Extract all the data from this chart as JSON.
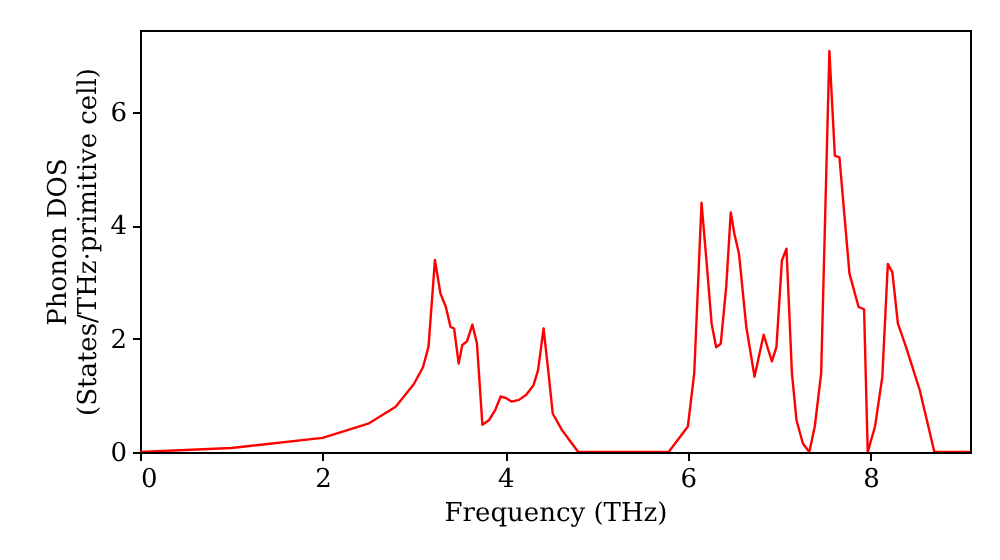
{
  "chart_data": {
    "type": "line",
    "xlabel": "Frequency (THz)",
    "ylabel": "Phonon DOS\n(States/THz·primitive cell)",
    "xlim": [
      0,
      9.09
    ],
    "ylim": [
      0,
      7.45
    ],
    "xticks": [
      0,
      2,
      4,
      6,
      8
    ],
    "yticks": [
      0,
      2,
      4,
      6
    ],
    "grid": false,
    "marker": "none",
    "line_style": "solid",
    "series": [
      {
        "color": "#ff0000",
        "x": [
          0,
          1,
          2,
          2.5,
          2.8,
          3.0,
          3.1,
          3.16,
          3.23,
          3.29,
          3.35,
          3.4,
          3.44,
          3.49,
          3.53,
          3.58,
          3.64,
          3.69,
          3.75,
          3.82,
          3.89,
          3.95,
          4.01,
          4.07,
          4.15,
          4.23,
          4.31,
          4.36,
          4.42,
          4.47,
          4.52,
          4.62,
          4.73,
          4.8,
          5.79,
          6.0,
          6.07,
          6.15,
          6.21,
          6.26,
          6.31,
          6.36,
          6.42,
          6.47,
          6.51,
          6.56,
          6.64,
          6.73,
          6.83,
          6.92,
          6.97,
          7.03,
          7.08,
          7.14,
          7.19,
          7.26,
          7.33,
          7.39,
          7.46,
          7.55,
          7.61,
          7.66,
          7.72,
          7.77,
          7.87,
          7.93,
          7.97,
          8.05,
          8.13,
          8.19,
          8.24,
          8.3,
          8.39,
          8.54,
          8.7,
          9.09
        ],
        "values": [
          0,
          0.07,
          0.25,
          0.5,
          0.8,
          1.2,
          1.5,
          1.86,
          3.39,
          2.8,
          2.56,
          2.21,
          2.18,
          1.56,
          1.89,
          1.95,
          2.25,
          1.92,
          0.48,
          0.56,
          0.74,
          0.98,
          0.95,
          0.89,
          0.92,
          1.01,
          1.18,
          1.45,
          2.18,
          1.45,
          0.68,
          0.39,
          0.15,
          0,
          0,
          0.45,
          1.39,
          4.4,
          3.26,
          2.27,
          1.85,
          1.91,
          2.91,
          4.23,
          3.85,
          3.5,
          2.21,
          1.33,
          2.07,
          1.6,
          1.85,
          3.38,
          3.59,
          1.39,
          0.56,
          0.15,
          0,
          0.45,
          1.39,
          7.08,
          5.23,
          5.2,
          4.08,
          3.15,
          2.56,
          2.52,
          0,
          0.45,
          1.33,
          3.32,
          3.17,
          2.27,
          1.85,
          1.09,
          0,
          0
        ]
      }
    ]
  }
}
